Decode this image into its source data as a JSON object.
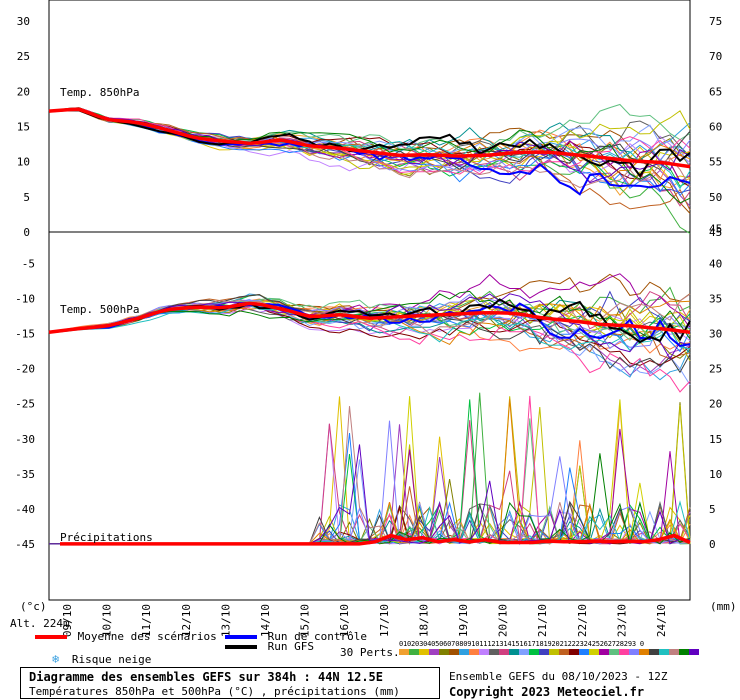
{
  "chart_data": {
    "type": "line",
    "x_dates": [
      "09/10",
      "10/10",
      "11/10",
      "12/10",
      "13/10",
      "14/10",
      "15/10",
      "16/10",
      "17/10",
      "18/10",
      "19/10",
      "20/10",
      "21/10",
      "22/10",
      "23/10",
      "24/10"
    ],
    "left_unit": "(°c)",
    "right_unit": "(mm)",
    "altitude": "Alt. 224m",
    "upper_panel": {
      "label": "Temp. 850hPa",
      "y_ticks_left": [
        0,
        5,
        10,
        15,
        20,
        25,
        30
      ],
      "y_ticks_right": [
        45,
        50,
        55,
        60,
        65,
        70,
        75
      ],
      "ylim": [
        0,
        33
      ],
      "mean": [
        17.2,
        17.5,
        16.0,
        15.6,
        14.6,
        13.4,
        12.9,
        12.6,
        13.1,
        12.2,
        11.9,
        11.4,
        10.9,
        11.0,
        10.8,
        10.9,
        11.3,
        11.4,
        11.0,
        10.6,
        10.1,
        9.9,
        9.3
      ]
    },
    "lower_panel": {
      "label": "Temp. 500hPa",
      "y_ticks_left": [
        -45,
        -40,
        -35,
        -30,
        -25,
        -20,
        -15,
        -10,
        -5
      ],
      "y_ticks_right": [
        0,
        5,
        10,
        15,
        20,
        25,
        30,
        35,
        40,
        45
      ],
      "ylim": [
        -53,
        -0.5
      ],
      "mean": [
        -14.8,
        -14.3,
        -13.9,
        -12.9,
        -11.6,
        -11.2,
        -11.3,
        -10.6,
        -11.5,
        -12.6,
        -12.3,
        -12.8,
        -12.6,
        -12.4,
        -12.2,
        -12.0,
        -12.1,
        -12.8,
        -13.2,
        -13.7,
        -13.9,
        -14.3,
        -14.8
      ],
      "precip_label": "Précipitations",
      "precip_mean_mm": [
        0,
        0,
        0,
        0,
        0,
        0,
        0,
        0,
        0,
        0,
        0,
        0,
        0,
        0,
        0,
        0,
        0,
        0,
        0,
        0,
        0.3,
        1.2,
        0.6,
        0.9,
        0.3,
        0.6,
        0.3,
        0.6,
        0.2,
        0.2,
        0.2,
        0.4,
        0.3,
        0.3,
        0.4,
        0.3,
        0.4,
        0.3,
        0.6,
        1.2,
        0.2
      ]
    },
    "legend": {
      "mean": "Moyenne des scénarios",
      "control": "Run de contrôle",
      "gfs": "Run GFS",
      "snow": "Risque neige",
      "perts": "30 Perts.",
      "pert_numbers": "01020304050607080910111213141516171819202122232425262728293 0"
    },
    "colors": {
      "mean": "#ff0000",
      "control": "#0000ff",
      "gfs": "#000000",
      "grid": "#b8b8b8",
      "perts": [
        "#f0a030",
        "#40b040",
        "#e0c000",
        "#a040c0",
        "#808000",
        "#a05000",
        "#30a0e0",
        "#ff8040",
        "#c080ff",
        "#606060",
        "#d04080",
        "#009090",
        "#80a0ff",
        "#00c040",
        "#4040c0",
        "#c0c000",
        "#c06020",
        "#800000",
        "#2080ff",
        "#d0d000",
        "#a000a0",
        "#60c080",
        "#ff40a0",
        "#8080ff",
        "#e08000",
        "#404040",
        "#20c0c0",
        "#c08080",
        "#008000",
        "#6000c0"
      ]
    }
  },
  "footer": {
    "title": "Diagramme des ensembles GEFS sur 384h : 44N 12.5E",
    "subtitle": "Températures 850hPa et 500hPa (°C) , précipitations (mm)",
    "run_info": "Ensemble GEFS du 08/10/2023 - 12Z",
    "copyright": "Copyright 2023 Meteociel.fr"
  }
}
